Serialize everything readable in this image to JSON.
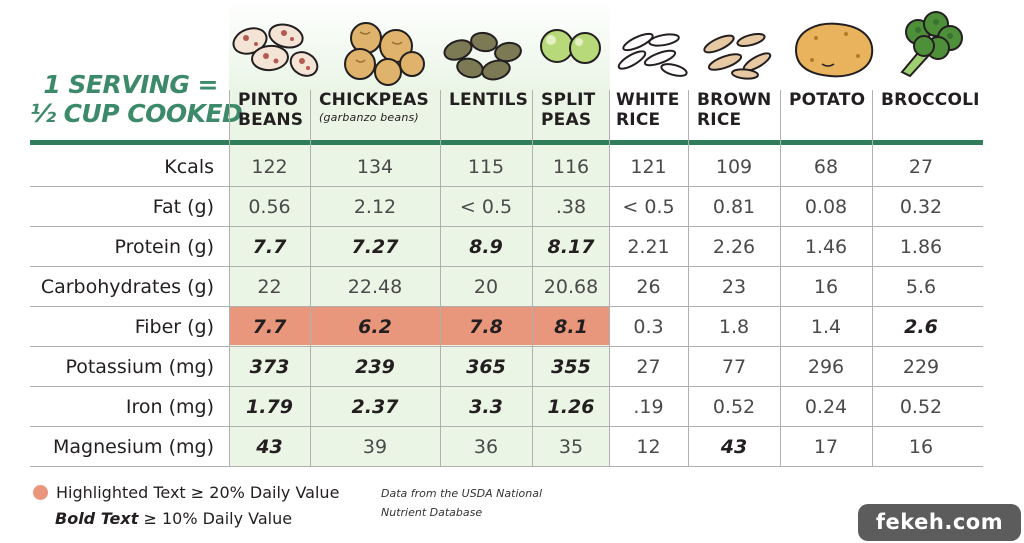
{
  "serving": {
    "line1": "1 SERVING =",
    "line2": "½ CUP COOKED"
  },
  "columns": [
    {
      "line1": "PINTO",
      "line2": "BEANS",
      "sub": "",
      "icon": "pinto-beans-icon"
    },
    {
      "line1": "CHICKPEAS",
      "line2": "",
      "sub": "(garbanzo beans)",
      "icon": "chickpeas-icon"
    },
    {
      "line1": "LENTILS",
      "line2": "",
      "sub": "",
      "icon": "lentils-icon"
    },
    {
      "line1": "SPLIT",
      "line2": "PEAS",
      "sub": "",
      "icon": "split-peas-icon"
    },
    {
      "line1": "WHITE",
      "line2": "RICE",
      "sub": "",
      "icon": "white-rice-icon"
    },
    {
      "line1": "BROWN",
      "line2": "RICE",
      "sub": "",
      "icon": "brown-rice-icon"
    },
    {
      "line1": "POTATO",
      "line2": "",
      "sub": "",
      "icon": "potato-icon"
    },
    {
      "line1": "BROCCOLI",
      "line2": "",
      "sub": "",
      "icon": "broccoli-icon"
    }
  ],
  "rows": [
    {
      "label": "Kcals",
      "values": [
        "122",
        "134",
        "115",
        "116",
        "121",
        "109",
        "68",
        "27"
      ],
      "bold": [
        false,
        false,
        false,
        false,
        false,
        false,
        false,
        false
      ]
    },
    {
      "label": "Fat (g)",
      "values": [
        "0.56",
        "2.12",
        "< 0.5",
        ".38",
        "< 0.5",
        "0.81",
        "0.08",
        "0.32"
      ],
      "bold": [
        false,
        false,
        false,
        false,
        false,
        false,
        false,
        false
      ]
    },
    {
      "label": "Protein (g)",
      "values": [
        "7.7",
        "7.27",
        "8.9",
        "8.17",
        "2.21",
        "2.26",
        "1.46",
        "1.86"
      ],
      "bold": [
        true,
        true,
        true,
        true,
        false,
        false,
        false,
        false
      ]
    },
    {
      "label": "Carbohydrates (g)",
      "values": [
        "22",
        "22.48",
        "20",
        "20.68",
        "26",
        "23",
        "16",
        "5.6"
      ],
      "bold": [
        false,
        false,
        false,
        false,
        false,
        false,
        false,
        false
      ]
    },
    {
      "label": "Fiber (g)",
      "values": [
        "7.7",
        "6.2",
        "7.8",
        "8.1",
        "0.3",
        "1.8",
        "1.4",
        "2.6"
      ],
      "bold": [
        true,
        true,
        true,
        true,
        false,
        false,
        false,
        true
      ]
    },
    {
      "label": "Potassium (mg)",
      "values": [
        "373",
        "239",
        "365",
        "355",
        "27",
        "77",
        "296",
        "229"
      ],
      "bold": [
        true,
        true,
        true,
        true,
        false,
        false,
        false,
        false
      ]
    },
    {
      "label": "Iron (mg)",
      "values": [
        "1.79",
        "2.37",
        "3.3",
        "1.26",
        ".19",
        "0.52",
        "0.24",
        "0.52"
      ],
      "bold": [
        true,
        true,
        true,
        true,
        false,
        false,
        false,
        false
      ]
    },
    {
      "label": "Magnesium (mg)",
      "values": [
        "43",
        "39",
        "36",
        "35",
        "12",
        "43",
        "17",
        "16"
      ],
      "bold": [
        true,
        false,
        false,
        false,
        false,
        true,
        false,
        false
      ]
    }
  ],
  "legend": {
    "highlight": "Highlighted Text ≥ 20% Daily Value",
    "bold_term": "Bold Text",
    "bold_rest": " ≥ 10% Daily Value"
  },
  "source": {
    "line1": "Data from the USDA National",
    "line2": "Nutrient Database"
  },
  "brand": "fekeh.com",
  "colors": {
    "accent": "#2f7d5b",
    "title_green": "#3c8a6a",
    "highlight": "#e9977c",
    "legume_bg": "#eaf5e6"
  }
}
